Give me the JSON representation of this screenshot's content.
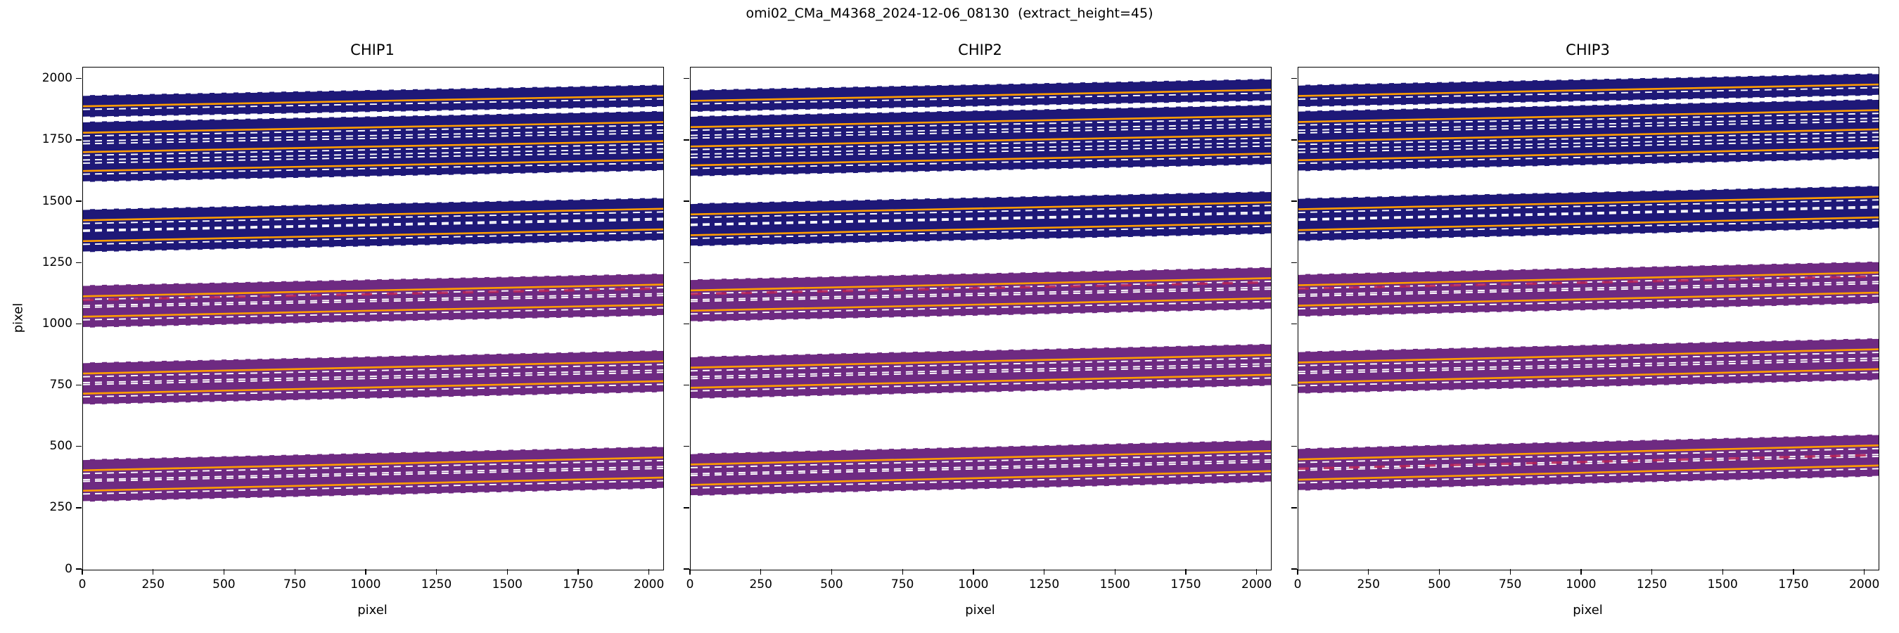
{
  "figure": {
    "title": "omi02_CMa_M4368_2024-12-06_08130  (extract_height=45)"
  },
  "axes": {
    "xlabel": "pixel",
    "ylabel": "pixel",
    "xlim": [
      0,
      2048
    ],
    "ylim": [
      0,
      2048
    ],
    "xticks": [
      0,
      250,
      500,
      750,
      1000,
      1250,
      1500,
      1750,
      2000
    ],
    "yticks": [
      0,
      250,
      500,
      750,
      1000,
      1250,
      1500,
      1750,
      2000
    ]
  },
  "chart_data": {
    "type": "line",
    "description": "Echelle spectral order traces on three 2048x2048 detector chips. Each order: dark band of the 2D spectrum, solid orange fitted trace at the order center, white dashed extraction boundaries at center +/- extract_height, occasional red dashed marker segments.",
    "extract_height": 45,
    "half_height": 45,
    "xlabel": "pixel",
    "ylabel": "pixel",
    "band_colors": {
      "navy": "#1e1878",
      "purple": "#6e2a82"
    },
    "trace_color": "#ff9d00",
    "boundary_color": "#ffffff",
    "marker_color": "#bb2255",
    "chips": [
      {
        "name": "CHIP1",
        "orders": [
          {
            "y_left": 1890,
            "y_right": 1933,
            "band": "navy"
          },
          {
            "y_left": 1782,
            "y_right": 1826,
            "band": "navy"
          },
          {
            "y_left": 1703,
            "y_right": 1748,
            "band": "navy"
          },
          {
            "y_left": 1626,
            "y_right": 1672,
            "band": "navy"
          },
          {
            "y_left": 1425,
            "y_right": 1472,
            "band": "navy"
          },
          {
            "y_left": 1340,
            "y_right": 1388,
            "band": "navy"
          },
          {
            "y_left": 1115,
            "y_right": 1163,
            "band": "purple"
          },
          {
            "y_left": 1032,
            "y_right": 1081,
            "band": "purple"
          },
          {
            "y_left": 800,
            "y_right": 850,
            "band": "purple"
          },
          {
            "y_left": 718,
            "y_right": 769,
            "band": "purple"
          },
          {
            "y_left": 405,
            "y_right": 458,
            "band": "purple"
          },
          {
            "y_left": 322,
            "y_right": 376,
            "band": "purple"
          }
        ],
        "marker_lines": [
          {
            "y_left": 1100,
            "y_right": 1147
          }
        ]
      },
      {
        "name": "CHIP2",
        "orders": [
          {
            "y_left": 1912,
            "y_right": 1957,
            "band": "navy"
          },
          {
            "y_left": 1805,
            "y_right": 1851,
            "band": "navy"
          },
          {
            "y_left": 1726,
            "y_right": 1773,
            "band": "navy"
          },
          {
            "y_left": 1649,
            "y_right": 1697,
            "band": "navy"
          },
          {
            "y_left": 1449,
            "y_right": 1498,
            "band": "navy"
          },
          {
            "y_left": 1364,
            "y_right": 1414,
            "band": "navy"
          },
          {
            "y_left": 1139,
            "y_right": 1189,
            "band": "purple"
          },
          {
            "y_left": 1056,
            "y_right": 1107,
            "band": "purple"
          },
          {
            "y_left": 824,
            "y_right": 876,
            "band": "purple"
          },
          {
            "y_left": 742,
            "y_right": 795,
            "band": "purple"
          },
          {
            "y_left": 429,
            "y_right": 484,
            "band": "purple"
          },
          {
            "y_left": 346,
            "y_right": 402,
            "band": "purple"
          }
        ],
        "marker_lines": [
          {
            "y_left": 1124,
            "y_right": 1172
          }
        ]
      },
      {
        "name": "CHIP3",
        "orders": [
          {
            "y_left": 1932,
            "y_right": 1979,
            "band": "navy"
          },
          {
            "y_left": 1826,
            "y_right": 1874,
            "band": "navy"
          },
          {
            "y_left": 1747,
            "y_right": 1796,
            "band": "navy"
          },
          {
            "y_left": 1670,
            "y_right": 1720,
            "band": "navy"
          },
          {
            "y_left": 1470,
            "y_right": 1521,
            "band": "navy"
          },
          {
            "y_left": 1385,
            "y_right": 1437,
            "band": "navy"
          },
          {
            "y_left": 1160,
            "y_right": 1212,
            "band": "purple"
          },
          {
            "y_left": 1077,
            "y_right": 1130,
            "band": "purple"
          },
          {
            "y_left": 845,
            "y_right": 899,
            "band": "purple"
          },
          {
            "y_left": 763,
            "y_right": 818,
            "band": "purple"
          },
          {
            "y_left": 450,
            "y_right": 507,
            "band": "purple"
          },
          {
            "y_left": 367,
            "y_right": 425,
            "band": "purple"
          }
        ],
        "marker_lines": [
          {
            "y_left": 1146,
            "y_right": 1196
          },
          {
            "y_left": 412,
            "y_right": 468
          }
        ]
      }
    ]
  }
}
